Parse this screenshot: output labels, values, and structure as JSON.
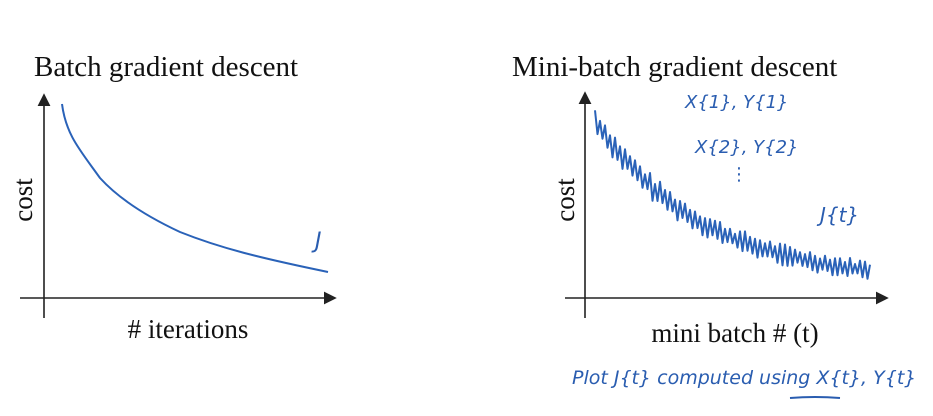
{
  "panels": [
    {
      "title": "Batch gradient descent",
      "y_label": "cost",
      "x_label": "# iterations",
      "annotations": [
        "J"
      ]
    },
    {
      "title": "Mini-batch gradient descent",
      "y_label": "cost",
      "x_label": "mini batch # (t)",
      "annotations": [
        "X{1}, Y{1}",
        "X{2}, Y{2}",
        "⋮",
        "J{t}"
      ]
    }
  ],
  "note": "Plot J{t} computed using X{t}, Y{t}"
}
